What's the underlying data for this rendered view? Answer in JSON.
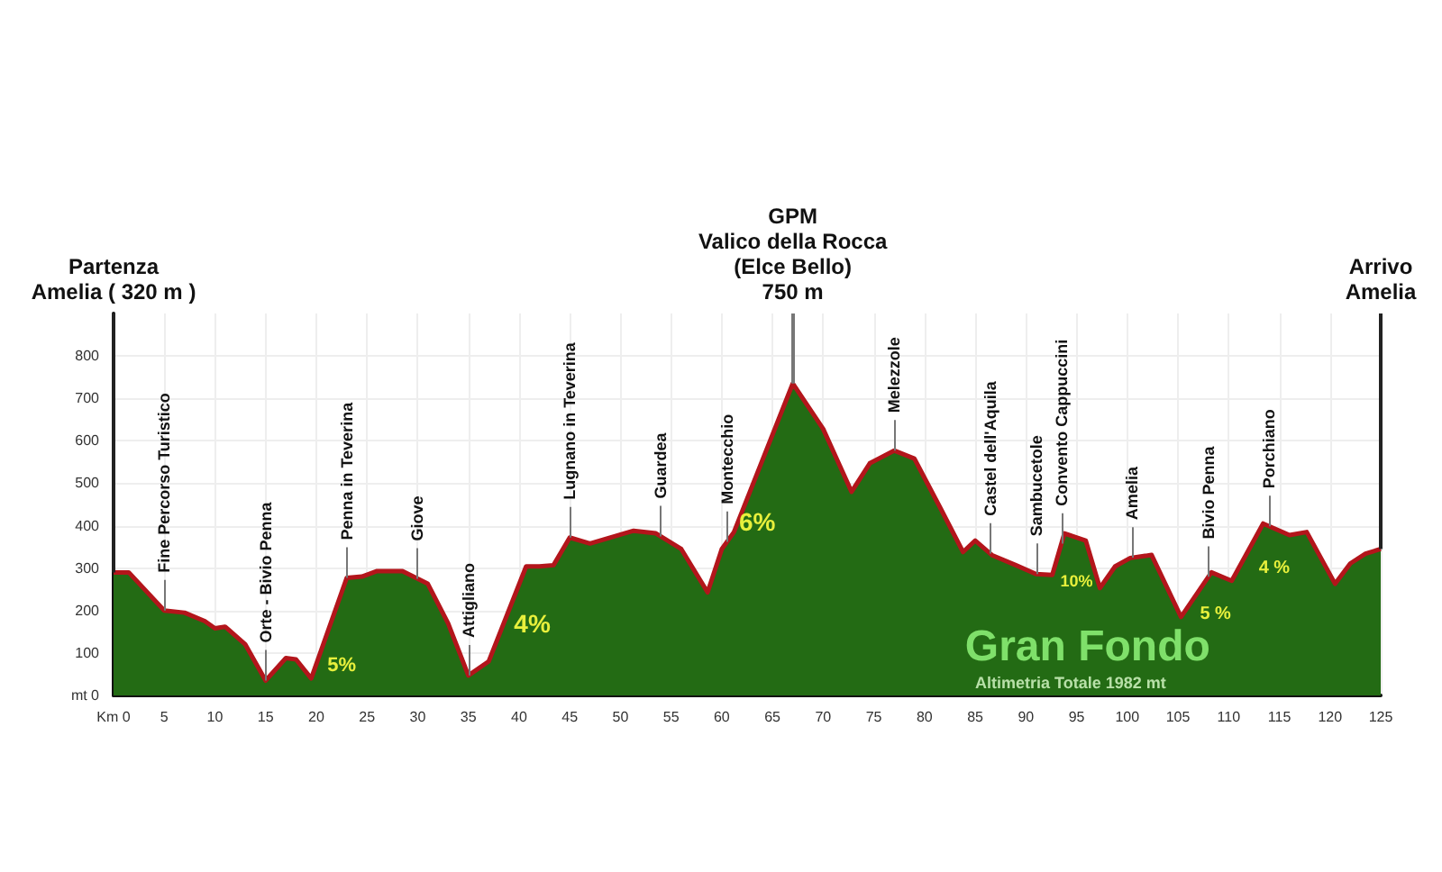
{
  "chart_data": {
    "type": "area",
    "x": [
      0,
      1.5,
      5,
      7,
      9,
      10,
      11,
      13,
      15,
      17,
      18,
      19.5,
      23,
      24.5,
      26,
      28.5,
      31,
      33,
      35,
      37,
      40.7,
      42,
      43.4,
      45,
      47,
      51.3,
      53.5,
      56,
      58.6,
      60,
      61.2,
      67,
      70,
      72.8,
      74.6,
      77,
      79,
      81.6,
      83.8,
      85,
      86.7,
      89,
      91,
      92.6,
      93.8,
      95.9,
      97.3,
      98.8,
      100.3,
      102.4,
      105.3,
      108.3,
      110.3,
      113.4,
      116,
      117.7,
      120.5,
      122,
      123.5,
      125
    ],
    "series": [
      {
        "color": "#236b14",
        "values": [
          290,
          290,
          200,
          195,
          175,
          158,
          162,
          120,
          35,
          88,
          85,
          40,
          277,
          280,
          293,
          293,
          263,
          170,
          47,
          80,
          304,
          304,
          307,
          372,
          358,
          388,
          382,
          345,
          243,
          345,
          385,
          735,
          628,
          480,
          547,
          577,
          558,
          440,
          338,
          365,
          330,
          307,
          286,
          284,
          382,
          365,
          253,
          304,
          324,
          331,
          185,
          290,
          270,
          405,
          378,
          385,
          263,
          311,
          334,
          345
        ]
      },
      {
        "type": "line",
        "color": "#b3151b",
        "values": [
          290,
          290,
          200,
          195,
          175,
          158,
          162,
          120,
          35,
          88,
          85,
          40,
          277,
          280,
          293,
          293,
          263,
          170,
          47,
          80,
          304,
          304,
          307,
          372,
          358,
          388,
          382,
          345,
          243,
          345,
          385,
          735,
          628,
          480,
          547,
          577,
          558,
          440,
          338,
          365,
          330,
          307,
          286,
          284,
          382,
          365,
          253,
          304,
          324,
          331,
          185,
          290,
          270,
          405,
          378,
          385,
          263,
          311,
          334,
          345
        ]
      }
    ],
    "xlim": [
      0,
      125
    ],
    "ylim": [
      0,
      900
    ],
    "xticks": [
      {
        "value": 0,
        "label": "Km 0"
      },
      5,
      10,
      15,
      20,
      25,
      30,
      35,
      40,
      45,
      50,
      55,
      60,
      65,
      70,
      75,
      80,
      85,
      90,
      95,
      100,
      105,
      110,
      115,
      120,
      125
    ],
    "yticks": [
      {
        "value": 0,
        "label": "mt 0"
      },
      100,
      200,
      300,
      400,
      500,
      600,
      700,
      800
    ],
    "grid": true,
    "marker": "none",
    "ref_lines": [
      {
        "axis": "x",
        "value": 0,
        "label": "Partenza\nAmelia ( 320 m )",
        "color": "#222222"
      },
      {
        "axis": "x",
        "value": 5,
        "label": "Fine Percorso Turistico",
        "color": "#777777"
      },
      {
        "axis": "x",
        "value": 15,
        "label": "Orte - Bivio Penna",
        "color": "#777777"
      },
      {
        "axis": "x",
        "value": 23,
        "label": "Penna in Teverina",
        "color": "#777777"
      },
      {
        "axis": "x",
        "value": 30,
        "label": "Giove",
        "color": "#777777"
      },
      {
        "axis": "x",
        "value": 35,
        "label": "Attigliano",
        "color": "#777777"
      },
      {
        "axis": "x",
        "value": 45,
        "label": "Lugnano in Teverina",
        "color": "#777777"
      },
      {
        "axis": "x",
        "value": 54,
        "label": "Guardea",
        "color": "#777777"
      },
      {
        "axis": "x",
        "value": 60.5,
        "label": "Montecchio",
        "color": "#777777"
      },
      {
        "axis": "x",
        "value": 67,
        "label": "GPM\nValico della Rocca\n(Elce Bello)\n750 m",
        "color": "#777777"
      },
      {
        "axis": "x",
        "value": 77,
        "label": "Melezzole",
        "color": "#777777"
      },
      {
        "axis": "x",
        "value": 86.5,
        "label": "Castel dell'Aquila",
        "color": "#777777"
      },
      {
        "axis": "x",
        "value": 91,
        "label": "Sambucetole",
        "color": "#777777"
      },
      {
        "axis": "x",
        "value": 93.5,
        "label": "Convento Cappuccini",
        "color": "#777777"
      },
      {
        "axis": "x",
        "value": 100.5,
        "label": "Amelia",
        "color": "#777777"
      },
      {
        "axis": "x",
        "value": 108,
        "label": "Bivio Penna",
        "color": "#777777"
      },
      {
        "axis": "x",
        "value": 114,
        "label": "Porchiano",
        "color": "#777777"
      },
      {
        "axis": "x",
        "value": 125,
        "label": "Arrivo\nAmelia",
        "color": "#222222"
      }
    ],
    "annotations": [
      "5%",
      "4%",
      "6%",
      "10%",
      "5 %",
      "4 %",
      "Gran Fondo",
      "Altimetria Totale 1982 mt"
    ]
  }
}
